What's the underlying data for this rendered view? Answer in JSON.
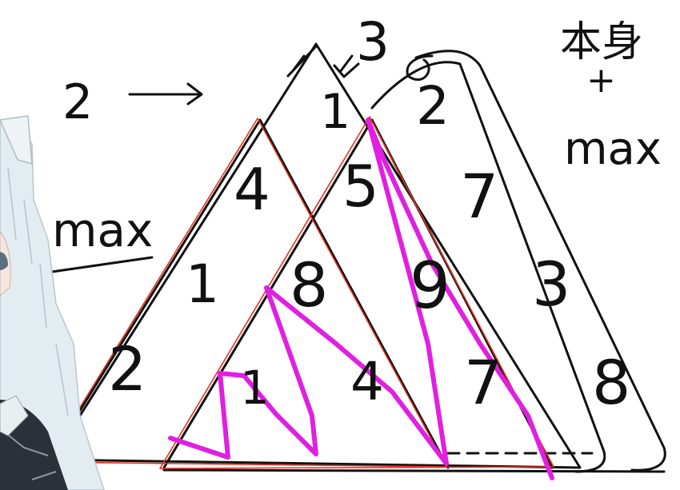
{
  "annotations": {
    "arrow_label": "2",
    "top_number": "3",
    "corner_text_top": "本身",
    "corner_plus": "+",
    "corner_text_bottom": "max",
    "left_max": "max"
  },
  "triangle_numbers": {
    "row1": [
      "1",
      "2"
    ],
    "row2": [
      "4",
      "5",
      "7"
    ],
    "row3": [
      "1",
      "8",
      "9",
      "3"
    ],
    "row4": [
      "2",
      "1",
      "4",
      "7",
      "8"
    ]
  },
  "colors": {
    "ink": "#111111",
    "outline": "#e53222",
    "path": "#e020e0",
    "hair": "#dfe9ee"
  }
}
